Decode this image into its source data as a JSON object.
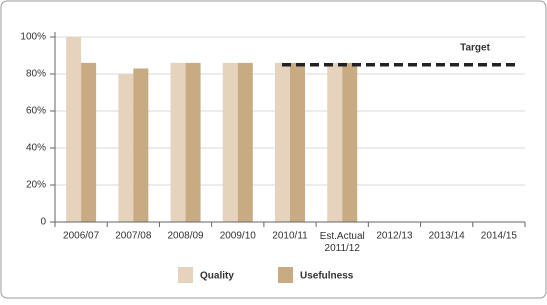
{
  "chart_data": {
    "type": "bar",
    "categories": [
      "2006/07",
      "2007/08",
      "2008/09",
      "2009/10",
      "2010/11",
      "Est.Actual 2011/12",
      "2012/13",
      "2013/14",
      "2014/15"
    ],
    "series": [
      {
        "name": "Quality",
        "color": "#e6d3bd",
        "values": [
          100,
          80,
          86,
          86,
          86,
          86,
          null,
          null,
          null
        ]
      },
      {
        "name": "Usefulness",
        "color": "#c8ab82",
        "values": [
          86,
          83,
          86,
          86,
          86,
          86,
          null,
          null,
          null
        ]
      }
    ],
    "ylim": [
      0,
      100
    ],
    "yticks": [
      0,
      {
        "value": 20,
        "label": "20%"
      },
      {
        "value": 40,
        "label": "40%"
      },
      {
        "value": 60,
        "label": "60%"
      },
      {
        "value": 80,
        "label": "80%"
      },
      {
        "value": 100,
        "label": "100%"
      }
    ],
    "grid": true,
    "target": {
      "label": "Target",
      "value": 85,
      "start": "2010/11"
    }
  }
}
